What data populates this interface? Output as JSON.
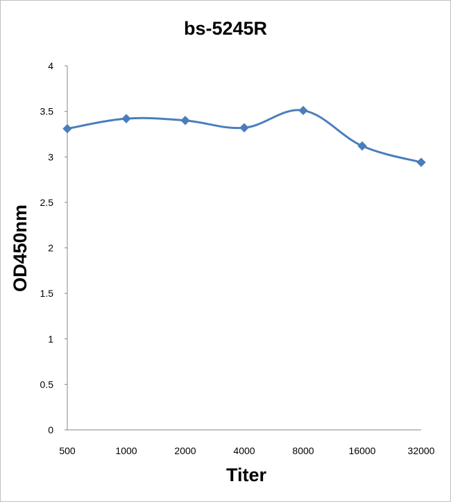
{
  "chart_data": {
    "type": "line",
    "title": "bs-5245R",
    "xlabel": "Titer",
    "ylabel": "OD450nm",
    "categories": [
      "500",
      "1000",
      "2000",
      "4000",
      "8000",
      "16000",
      "32000"
    ],
    "series": [
      {
        "values": [
          3.31,
          3.42,
          3.4,
          3.32,
          3.51,
          3.12,
          2.94
        ],
        "color": "#4a7ebb"
      }
    ],
    "ylim": [
      0,
      4
    ],
    "yticks": [
      "0",
      "0.5",
      "1",
      "1.5",
      "2",
      "2.5",
      "3",
      "3.5",
      "4"
    ],
    "grid": false,
    "legend": "none",
    "marker": "diamond",
    "smooth": true
  }
}
